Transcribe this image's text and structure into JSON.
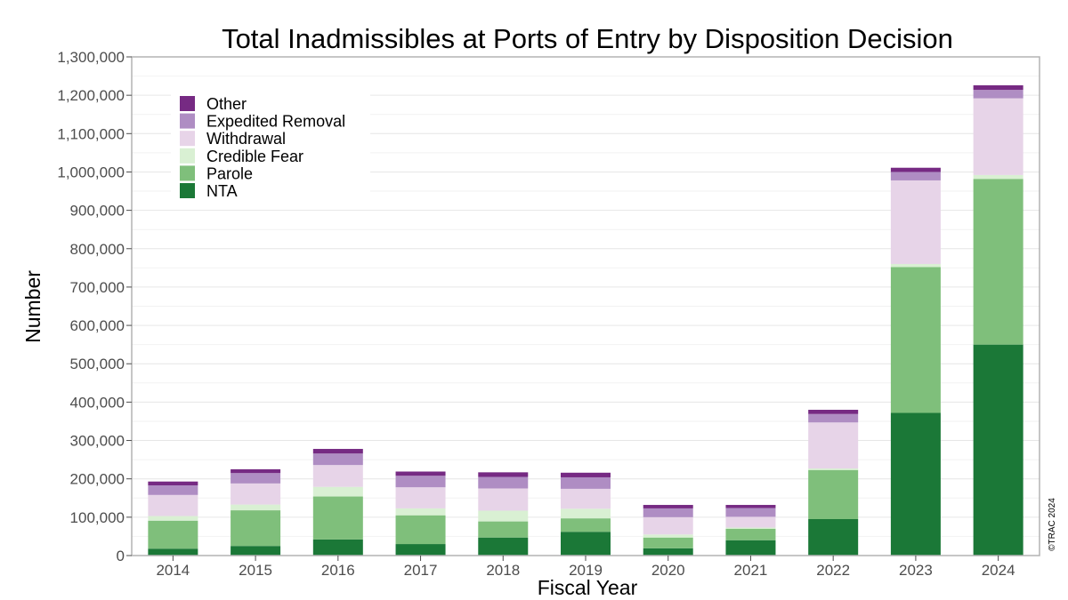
{
  "chart_data": {
    "type": "bar",
    "stacked": true,
    "title": "Total Inadmissibles at Ports of Entry by Disposition Decision",
    "xlabel": "Fiscal Year",
    "ylabel": "Number",
    "ylim": [
      0,
      1300000
    ],
    "yticks": [
      0,
      100000,
      200000,
      300000,
      400000,
      500000,
      600000,
      700000,
      800000,
      900000,
      1000000,
      1100000,
      1200000,
      1300000
    ],
    "ytick_labels": [
      "0",
      "100,000",
      "200,000",
      "300,000",
      "400,000",
      "500,000",
      "600,000",
      "700,000",
      "800,000",
      "900,000",
      "1,000,000",
      "1,100,000",
      "1,200,000",
      "1,300,000"
    ],
    "categories": [
      "2014",
      "2015",
      "2016",
      "2017",
      "2018",
      "2019",
      "2020",
      "2021",
      "2022",
      "2023",
      "2024"
    ],
    "series": [
      {
        "name": "NTA",
        "color": "#1b7837",
        "values": [
          18000,
          25000,
          42000,
          30000,
          47000,
          62000,
          19000,
          40000,
          95000,
          372000,
          550000
        ]
      },
      {
        "name": "Parole",
        "color": "#7fbf7b",
        "values": [
          73000,
          93000,
          112000,
          75000,
          42000,
          35000,
          28000,
          30000,
          128000,
          380000,
          432000
        ]
      },
      {
        "name": "Credible Fear",
        "color": "#d9f0d3",
        "values": [
          12000,
          15000,
          25000,
          18000,
          28000,
          25000,
          8000,
          3000,
          4000,
          8000,
          10000
        ]
      },
      {
        "name": "Withdrawal",
        "color": "#e7d4e8",
        "values": [
          55000,
          55000,
          57000,
          55000,
          58000,
          52000,
          45000,
          28000,
          120000,
          218000,
          200000
        ]
      },
      {
        "name": "Expedited Removal",
        "color": "#af8dc3",
        "values": [
          25000,
          27000,
          30000,
          30000,
          30000,
          30000,
          23000,
          23000,
          22000,
          22000,
          22000
        ]
      },
      {
        "name": "Other",
        "color": "#762a83",
        "values": [
          10000,
          10000,
          12000,
          11000,
          12000,
          12000,
          9000,
          8000,
          11000,
          11000,
          12000
        ]
      }
    ],
    "legend_order": [
      "Other",
      "Expedited Removal",
      "Withdrawal",
      "Credible Fear",
      "Parole",
      "NTA"
    ],
    "legend_position": "top-left",
    "grid": true,
    "credit": "©TRAC 2024"
  }
}
